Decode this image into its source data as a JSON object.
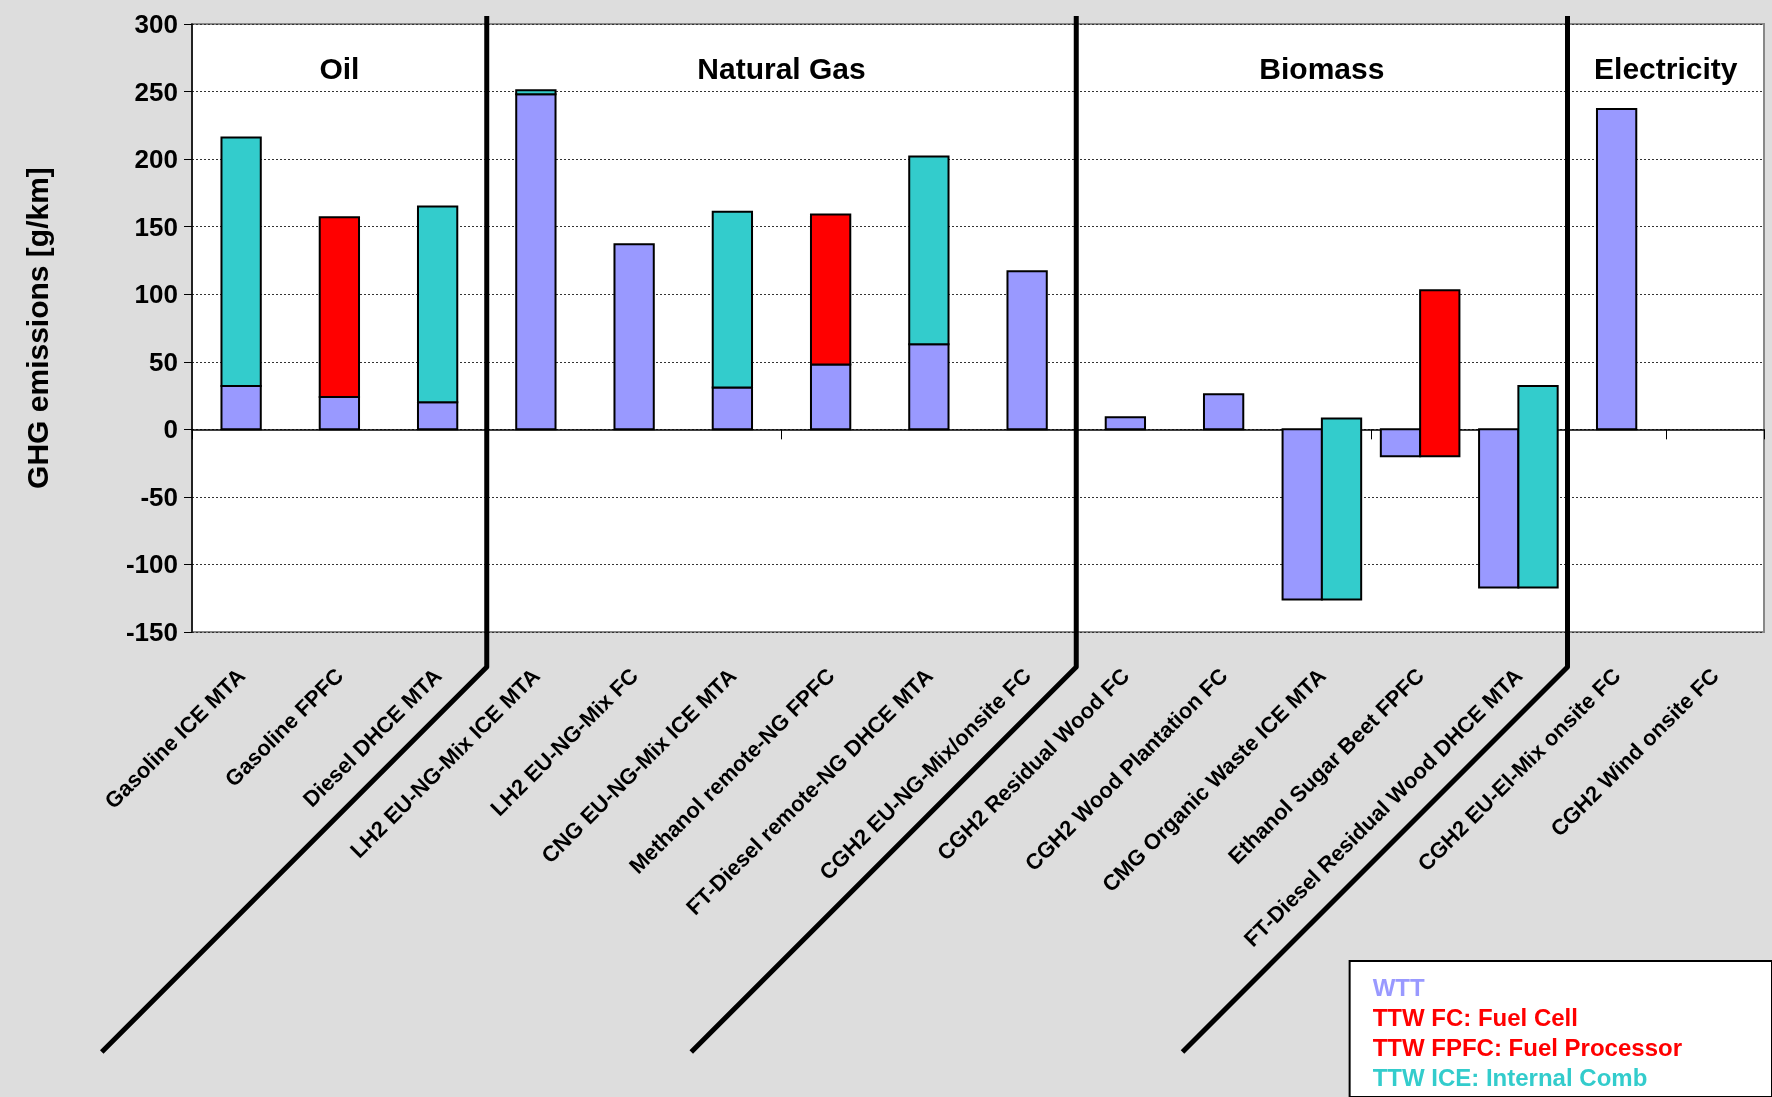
{
  "chart_data": {
    "type": "bar",
    "ylabel": "GHG emissions [g/km]",
    "categories": [
      "Gasoline ICE MTA",
      "Gasoline FPFC",
      "Diesel DHCE MTA",
      "LH2 EU-NG-Mix ICE MTA",
      "LH2 EU-NG-Mix FC",
      "CNG EU-NG-Mix ICE MTA",
      "Methanol remote-NG FPFC",
      "FT-Diesel remote-NG DHCE MTA",
      "CGH2 EU-NG-Mix/onsite FC",
      "CGH2 Residual Wood FC",
      "CGH2 Wood Plantation FC",
      "CMG Organic Waste ICE MTA",
      "Ethanol Sugar Beet FPFC",
      "FT-Diesel Residual Wood DHCE MTA",
      "CGH2 EU-El-Mix onsite FC",
      "CGH2 Wind onsite FC"
    ],
    "series": [
      {
        "name": "WTT",
        "color": "#9999ff",
        "values": [
          32,
          24,
          20,
          248,
          137,
          31,
          48,
          63,
          117,
          9,
          26,
          -126,
          -20,
          -117,
          237,
          null
        ]
      },
      {
        "name": "TTW FC: Fuel Cell",
        "color": "#ff0000",
        "values": [
          null,
          null,
          null,
          null,
          null,
          null,
          null,
          null,
          null,
          null,
          null,
          null,
          null,
          null,
          null,
          null
        ]
      },
      {
        "name": "TTW FPFC: Fuel Processor",
        "color": "#ff0000",
        "values": [
          null,
          133,
          null,
          null,
          null,
          null,
          111,
          null,
          null,
          null,
          null,
          null,
          123,
          null,
          null,
          null
        ],
        "base": [
          null,
          24,
          null,
          null,
          null,
          null,
          48,
          null,
          null,
          null,
          null,
          null,
          -20,
          null,
          null,
          null
        ]
      },
      {
        "name": "TTW ICE: Internal Comb",
        "color": "#33cccc",
        "values": [
          184,
          null,
          145,
          3,
          null,
          130,
          null,
          139,
          null,
          null,
          null,
          134,
          null,
          149,
          null,
          null
        ],
        "base": [
          32,
          null,
          20,
          248,
          null,
          31,
          null,
          63,
          null,
          null,
          null,
          -126,
          null,
          -117,
          null,
          null
        ]
      }
    ],
    "ylim": [
      -150,
      300
    ],
    "yticks": [
      -150,
      -100,
      -50,
      0,
      50,
      100,
      150,
      200,
      250,
      300
    ],
    "grid": "y",
    "legend": "bottom right",
    "ref_lines": [
      {
        "axis": "x",
        "value": "Diesel DHCE MTA",
        "color": "#000000"
      },
      {
        "axis": "x",
        "value": "CGH2 EU-NG-Mix/onsite FC",
        "color": "#000000"
      },
      {
        "axis": "x",
        "value": "FT-Diesel Residual Wood DHCE MTA",
        "color": "#000000"
      }
    ],
    "annotations": [
      "Oil",
      "Natural Gas",
      "Biomass",
      "Electricity"
    ]
  }
}
